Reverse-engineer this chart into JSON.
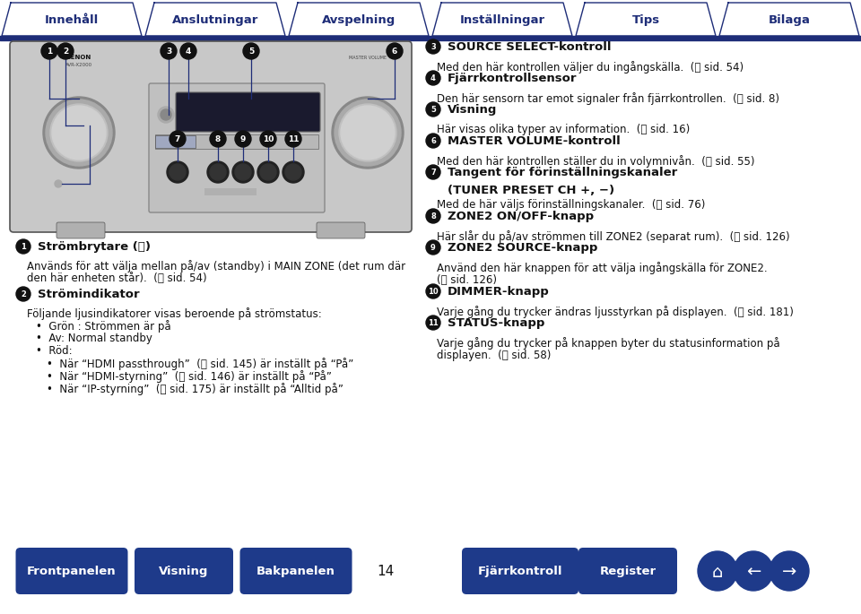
{
  "bg_color": "#ffffff",
  "header_border_color": "#1e2d78",
  "header_tabs": [
    "Innehåll",
    "Anslutningar",
    "Avspelning",
    "Inställningar",
    "Tips",
    "Bilaga"
  ],
  "footer_buttons": [
    "Frontpanelen",
    "Visning",
    "Bakpanelen",
    "Fjärrkontroll",
    "Register"
  ],
  "footer_page_num": "14",
  "blue": "#1e2d78",
  "light_blue": "#4b6cb7",
  "bullet_color": "#1a1a1a",
  "right_items": [
    {
      "num": "3",
      "title": "SOURCE SELECT-kontroll",
      "body": [
        "Med den här kontrollen väljer du ingångskälla.  (⑂ sid. 54)"
      ]
    },
    {
      "num": "4",
      "title": "Fjärrkontrollsensor",
      "body": [
        "Den här sensorn tar emot signaler från fjärrkontrollen.  (⑂ sid. 8)"
      ]
    },
    {
      "num": "5",
      "title": "Visning",
      "body": [
        "Här visas olika typer av information.  (⑂ sid. 16)"
      ]
    },
    {
      "num": "6",
      "title": "MASTER VOLUME-kontroll",
      "body": [
        "Med den här kontrollen ställer du in volymnivån.  (⑂ sid. 55)"
      ]
    },
    {
      "num": "7",
      "title": "Tangent för förinställningskanaler",
      "title2": "(TUNER PRESET CH +, −)",
      "body": [
        "Med de här väljs förinställningskanaler.  (⑂ sid. 76)"
      ]
    },
    {
      "num": "8",
      "title": "ZONE2 ON/OFF-knapp",
      "body": [
        "Här slår du på/av strömmen till ZONE2 (separat rum).  (⑂ sid. 126)"
      ]
    },
    {
      "num": "9",
      "title": "ZONE2 SOURCE-knapp",
      "body": [
        "Använd den här knappen för att välja ingångskälla för ZONE2.",
        "(⑂ sid. 126)"
      ]
    },
    {
      "num": "10",
      "title": "DIMMER-knapp",
      "body": [
        "Varje gång du trycker ändras ljusstyrkan på displayen.  (⑂ sid. 181)"
      ]
    },
    {
      "num": "11",
      "title": "STATUS-knapp",
      "body": [
        "Varje gång du trycker på knappen byter du statusinformation på",
        "displayen.  (⑂ sid. 58)"
      ]
    }
  ]
}
